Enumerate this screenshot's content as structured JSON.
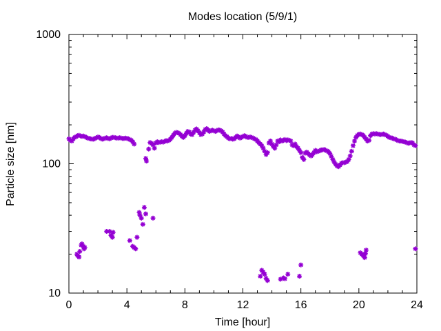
{
  "chart_data": {
    "type": "scatter",
    "title": "Modes location (5/9/1)",
    "xlabel": "Time [hour]",
    "ylabel": "Particle size [nm]",
    "xlim": [
      0,
      24
    ],
    "ylim": [
      10,
      1000
    ],
    "yscale": "log",
    "grid": false,
    "legend": "none",
    "x_ticks": [
      0,
      4,
      8,
      12,
      16,
      20,
      24
    ],
    "y_ticks": [
      10,
      100,
      1000
    ],
    "x_tick_labels": [
      "0",
      "4",
      "8",
      "12",
      "16",
      "20",
      "24"
    ],
    "y_tick_labels": [
      "10",
      "100",
      "1000"
    ],
    "marker_color": "#9400d3",
    "series": [
      {
        "marker": "asterisk",
        "points": [
          [
            0.0,
            156
          ],
          [
            0.1,
            152
          ],
          [
            0.2,
            150
          ],
          [
            0.3,
            156
          ],
          [
            0.4,
            160
          ],
          [
            0.5,
            162
          ],
          [
            0.6,
            165
          ],
          [
            0.7,
            166
          ],
          [
            0.8,
            164
          ],
          [
            0.9,
            163
          ],
          [
            1.0,
            164
          ],
          [
            1.1,
            162
          ],
          [
            1.2,
            160
          ],
          [
            1.3,
            158
          ],
          [
            1.4,
            157
          ],
          [
            1.5,
            156
          ],
          [
            1.6,
            155
          ],
          [
            1.7,
            155
          ],
          [
            1.8,
            157
          ],
          [
            1.9,
            159
          ],
          [
            2.0,
            161
          ],
          [
            2.1,
            160
          ],
          [
            2.2,
            157
          ],
          [
            2.3,
            155
          ],
          [
            2.4,
            156
          ],
          [
            2.5,
            158
          ],
          [
            2.6,
            159
          ],
          [
            2.7,
            157
          ],
          [
            2.8,
            156
          ],
          [
            2.9,
            158
          ],
          [
            3.0,
            160
          ],
          [
            3.1,
            160
          ],
          [
            3.2,
            159
          ],
          [
            3.3,
            158
          ],
          [
            3.4,
            158
          ],
          [
            3.5,
            159
          ],
          [
            3.6,
            158
          ],
          [
            3.7,
            157
          ],
          [
            3.8,
            157
          ],
          [
            3.9,
            158
          ],
          [
            4.0,
            157
          ],
          [
            4.1,
            156
          ],
          [
            4.2,
            154
          ],
          [
            4.3,
            152
          ],
          [
            4.4,
            148
          ],
          [
            4.5,
            142
          ],
          [
            5.3,
            110
          ],
          [
            5.35,
            105
          ],
          [
            5.5,
            130
          ],
          [
            5.6,
            146
          ],
          [
            5.7,
            144
          ],
          [
            5.8,
            140
          ],
          [
            5.9,
            132
          ],
          [
            6.0,
            145
          ],
          [
            6.1,
            148
          ],
          [
            6.2,
            146
          ],
          [
            6.3,
            147
          ],
          [
            6.4,
            148
          ],
          [
            6.5,
            147
          ],
          [
            6.6,
            149
          ],
          [
            6.7,
            151
          ],
          [
            6.8,
            150
          ],
          [
            6.9,
            152
          ],
          [
            7.0,
            155
          ],
          [
            7.1,
            160
          ],
          [
            7.2,
            166
          ],
          [
            7.3,
            172
          ],
          [
            7.4,
            175
          ],
          [
            7.5,
            174
          ],
          [
            7.6,
            172
          ],
          [
            7.7,
            168
          ],
          [
            7.8,
            163
          ],
          [
            7.9,
            160
          ],
          [
            8.0,
            165
          ],
          [
            8.1,
            172
          ],
          [
            8.2,
            178
          ],
          [
            8.3,
            176
          ],
          [
            8.4,
            170
          ],
          [
            8.5,
            168
          ],
          [
            8.6,
            175
          ],
          [
            8.7,
            182
          ],
          [
            8.8,
            186
          ],
          [
            8.9,
            180
          ],
          [
            9.0,
            174
          ],
          [
            9.1,
            168
          ],
          [
            9.2,
            170
          ],
          [
            9.3,
            176
          ],
          [
            9.4,
            184
          ],
          [
            9.5,
            187
          ],
          [
            9.6,
            182
          ],
          [
            9.7,
            178
          ],
          [
            9.8,
            180
          ],
          [
            9.9,
            182
          ],
          [
            10.0,
            180
          ],
          [
            10.1,
            178
          ],
          [
            10.2,
            180
          ],
          [
            10.3,
            183
          ],
          [
            10.4,
            182
          ],
          [
            10.5,
            180
          ],
          [
            10.6,
            176
          ],
          [
            10.7,
            170
          ],
          [
            10.8,
            165
          ],
          [
            10.9,
            162
          ],
          [
            11.0,
            158
          ],
          [
            11.1,
            156
          ],
          [
            11.2,
            157
          ],
          [
            11.3,
            155
          ],
          [
            11.4,
            156
          ],
          [
            11.5,
            160
          ],
          [
            11.6,
            164
          ],
          [
            11.7,
            162
          ],
          [
            11.8,
            158
          ],
          [
            11.9,
            160
          ],
          [
            12.0,
            162
          ],
          [
            12.1,
            165
          ],
          [
            12.2,
            163
          ],
          [
            12.3,
            160
          ],
          [
            12.4,
            160
          ],
          [
            12.5,
            161
          ],
          [
            12.6,
            160
          ],
          [
            12.7,
            158
          ],
          [
            12.8,
            156
          ],
          [
            12.9,
            154
          ],
          [
            13.0,
            150
          ],
          [
            13.1,
            146
          ],
          [
            13.2,
            142
          ],
          [
            13.3,
            138
          ],
          [
            13.4,
            132
          ],
          [
            13.5,
            125
          ],
          [
            13.6,
            118
          ],
          [
            13.7,
            122
          ],
          [
            13.8,
            145
          ],
          [
            13.9,
            150
          ],
          [
            14.0,
            142
          ],
          [
            14.1,
            136
          ],
          [
            14.2,
            132
          ],
          [
            14.3,
            140
          ],
          [
            14.4,
            150
          ],
          [
            14.5,
            148
          ],
          [
            14.6,
            153
          ],
          [
            14.7,
            150
          ],
          [
            14.8,
            152
          ],
          [
            14.9,
            154
          ],
          [
            15.0,
            151
          ],
          [
            15.1,
            153
          ],
          [
            15.2,
            152
          ],
          [
            15.3,
            150
          ],
          [
            15.4,
            140
          ],
          [
            15.5,
            138
          ],
          [
            15.6,
            142
          ],
          [
            15.7,
            136
          ],
          [
            15.8,
            132
          ],
          [
            15.9,
            127
          ],
          [
            16.0,
            122
          ],
          [
            16.1,
            112
          ],
          [
            16.2,
            108
          ],
          [
            16.3,
            121
          ],
          [
            16.4,
            123
          ],
          [
            16.5,
            120
          ],
          [
            16.6,
            117
          ],
          [
            16.7,
            115
          ],
          [
            16.8,
            118
          ],
          [
            16.9,
            122
          ],
          [
            17.0,
            127
          ],
          [
            17.1,
            124
          ],
          [
            17.2,
            125
          ],
          [
            17.3,
            126
          ],
          [
            17.4,
            128
          ],
          [
            17.5,
            128
          ],
          [
            17.6,
            129
          ],
          [
            17.7,
            127
          ],
          [
            17.8,
            126
          ],
          [
            17.9,
            124
          ],
          [
            18.0,
            120
          ],
          [
            18.1,
            114
          ],
          [
            18.2,
            108
          ],
          [
            18.3,
            103
          ],
          [
            18.4,
            99
          ],
          [
            18.5,
            96
          ],
          [
            18.6,
            95
          ],
          [
            18.7,
            98
          ],
          [
            18.8,
            101
          ],
          [
            18.9,
            102
          ],
          [
            19.0,
            102
          ],
          [
            19.1,
            103
          ],
          [
            19.2,
            104
          ],
          [
            19.3,
            108
          ],
          [
            19.4,
            115
          ],
          [
            19.5,
            125
          ],
          [
            19.6,
            138
          ],
          [
            19.7,
            150
          ],
          [
            19.8,
            160
          ],
          [
            19.9,
            166
          ],
          [
            20.0,
            169
          ],
          [
            20.1,
            170
          ],
          [
            20.2,
            168
          ],
          [
            20.3,
            166
          ],
          [
            20.4,
            160
          ],
          [
            20.5,
            155
          ],
          [
            20.6,
            150
          ],
          [
            20.7,
            152
          ],
          [
            20.8,
            165
          ],
          [
            20.9,
            170
          ],
          [
            21.0,
            171
          ],
          [
            21.1,
            170
          ],
          [
            21.2,
            171
          ],
          [
            21.3,
            170
          ],
          [
            21.4,
            169
          ],
          [
            21.5,
            168
          ],
          [
            21.6,
            169
          ],
          [
            21.7,
            170
          ],
          [
            21.8,
            168
          ],
          [
            21.9,
            166
          ],
          [
            22.0,
            163
          ],
          [
            22.1,
            160
          ],
          [
            22.2,
            159
          ],
          [
            22.3,
            158
          ],
          [
            22.4,
            156
          ],
          [
            22.5,
            155
          ],
          [
            22.6,
            153
          ],
          [
            22.7,
            151
          ],
          [
            22.8,
            150
          ],
          [
            22.9,
            150
          ],
          [
            23.0,
            149
          ],
          [
            23.1,
            148
          ],
          [
            23.2,
            147
          ],
          [
            23.3,
            146
          ],
          [
            23.4,
            144
          ],
          [
            23.5,
            145
          ],
          [
            23.6,
            146
          ],
          [
            23.7,
            145
          ],
          [
            23.8,
            140
          ],
          [
            23.9,
            138
          ],
          [
            0.55,
            20
          ],
          [
            0.6,
            19.5
          ],
          [
            0.7,
            19
          ],
          [
            0.75,
            21
          ],
          [
            0.85,
            23.5
          ],
          [
            0.9,
            24
          ],
          [
            1.0,
            23
          ],
          [
            1.05,
            22
          ],
          [
            1.1,
            22.5
          ],
          [
            2.6,
            30
          ],
          [
            2.8,
            30
          ],
          [
            2.9,
            28
          ],
          [
            3.0,
            27
          ],
          [
            3.05,
            29.5
          ],
          [
            4.2,
            25.5
          ],
          [
            4.4,
            23
          ],
          [
            4.5,
            22.5
          ],
          [
            4.6,
            22
          ],
          [
            4.7,
            27
          ],
          [
            4.85,
            42
          ],
          [
            4.9,
            40
          ],
          [
            5.0,
            38
          ],
          [
            5.1,
            34
          ],
          [
            5.2,
            46
          ],
          [
            5.3,
            41
          ],
          [
            5.8,
            38
          ],
          [
            13.2,
            13.5
          ],
          [
            13.3,
            15
          ],
          [
            13.4,
            14.5
          ],
          [
            13.5,
            14
          ],
          [
            13.6,
            13
          ],
          [
            13.7,
            12.5
          ],
          [
            14.6,
            12.8
          ],
          [
            14.8,
            13.1
          ],
          [
            14.9,
            12.9
          ],
          [
            15.1,
            14
          ],
          [
            15.9,
            13.5
          ],
          [
            16.0,
            16.5
          ],
          [
            20.1,
            20.5
          ],
          [
            20.2,
            20
          ],
          [
            20.3,
            19.5
          ],
          [
            20.4,
            18.8
          ],
          [
            20.45,
            20.2
          ],
          [
            20.5,
            21.5
          ],
          [
            23.9,
            22
          ]
        ]
      }
    ]
  }
}
